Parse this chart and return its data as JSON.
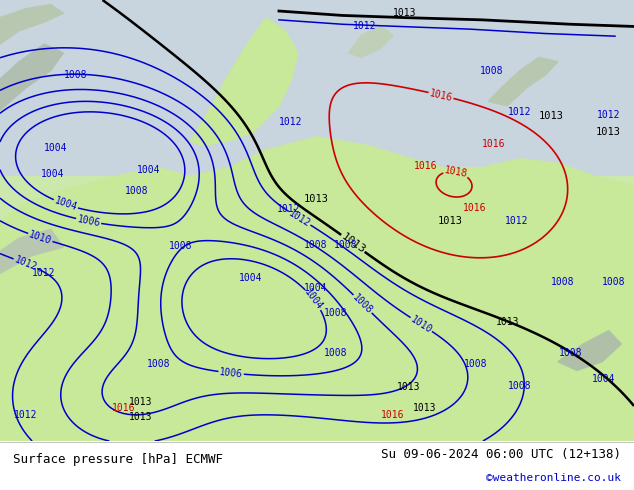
{
  "title_left": "Surface pressure [hPa] ECMWF",
  "title_right": "Su 09-06-2024 06:00 UTC (12+138)",
  "credit": "©weatheronline.co.uk",
  "sea_color_top": "#c8d4e0",
  "sea_color_bottom": "#c8d8e8",
  "land_color": "#c8e6a0",
  "land_color2": "#d0e8a8",
  "gray_land_color": "#b8c8b0",
  "blue_contour_color": "#0000cc",
  "black_contour_color": "#000000",
  "red_contour_color": "#cc0000",
  "footer_bg": "#ffffff",
  "footer_text_color": "#000000",
  "credit_color": "#0000cc",
  "fig_width": 6.34,
  "fig_height": 4.9,
  "dpi": 100
}
